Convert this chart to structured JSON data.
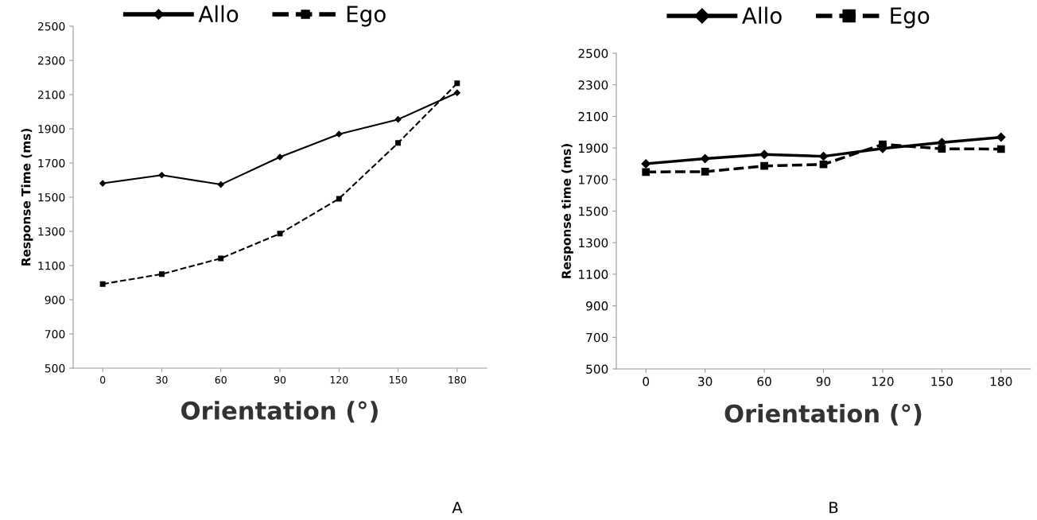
{
  "chart_data": [
    {
      "type": "line",
      "categories": [
        "0",
        "30",
        "60",
        "90",
        "120",
        "150",
        "180"
      ],
      "xlabel": "Orientation (°)",
      "ylabel": "Response Time (ms)",
      "ylim": [
        500,
        2500
      ],
      "yticks": [
        500,
        700,
        900,
        1100,
        1300,
        1500,
        1700,
        1900,
        2100,
        2300,
        2500
      ],
      "legend": "top",
      "grid": false,
      "series": [
        {
          "name": "Allo",
          "color": "#000000",
          "marker": "diamond",
          "line_style": "solid",
          "values": [
            1581,
            1629,
            1574,
            1735,
            1869,
            1955,
            2111
          ]
        },
        {
          "name": "Ego",
          "color": "#000000",
          "marker": "square",
          "line_style": "dashed",
          "values": [
            992,
            1050,
            1142,
            1287,
            1491,
            1817,
            2166
          ]
        }
      ],
      "annotations": [
        "A"
      ]
    },
    {
      "type": "line",
      "categories": [
        "0",
        "30",
        "60",
        "90",
        "120",
        "150",
        "180"
      ],
      "xlabel": "Orientation (°)",
      "ylabel": "Response time (ms)",
      "ylim": [
        500,
        2500
      ],
      "yticks": [
        500,
        700,
        900,
        1100,
        1300,
        1500,
        1700,
        1900,
        2100,
        2300,
        2500
      ],
      "legend": "top",
      "grid": false,
      "series": [
        {
          "name": "Allo",
          "color": "#000000",
          "marker": "diamond",
          "line_style": "solid",
          "values": [
            1800,
            1833,
            1859,
            1847,
            1897,
            1935,
            1968
          ]
        },
        {
          "name": "Ego",
          "color": "#000000",
          "marker": "square",
          "line_style": "dashed",
          "values": [
            1748,
            1750,
            1786,
            1796,
            1923,
            1895,
            1893
          ]
        }
      ],
      "annotations": [
        "B"
      ]
    }
  ]
}
